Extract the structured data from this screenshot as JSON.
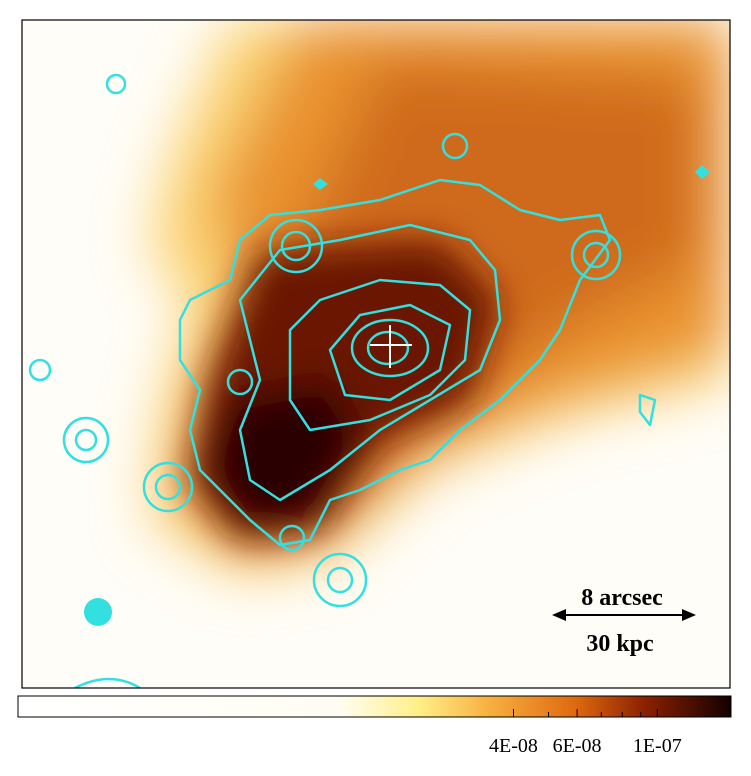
{
  "image": {
    "scale_bar": {
      "angular": "8 arcsec",
      "physical": "30 kpc"
    }
  },
  "colorbar": {
    "scale": "log",
    "lim": [
      1.7e-09,
      1.6e-07
    ],
    "ticks": [
      {
        "value": 4e-08,
        "label": "4E-08"
      },
      {
        "value": 6e-08,
        "label": "6E-08"
      },
      {
        "value": 1e-07,
        "label": "1E-07"
      }
    ],
    "minor_ticks": [
      5e-08,
      7e-08,
      8e-08,
      9e-08
    ]
  }
}
